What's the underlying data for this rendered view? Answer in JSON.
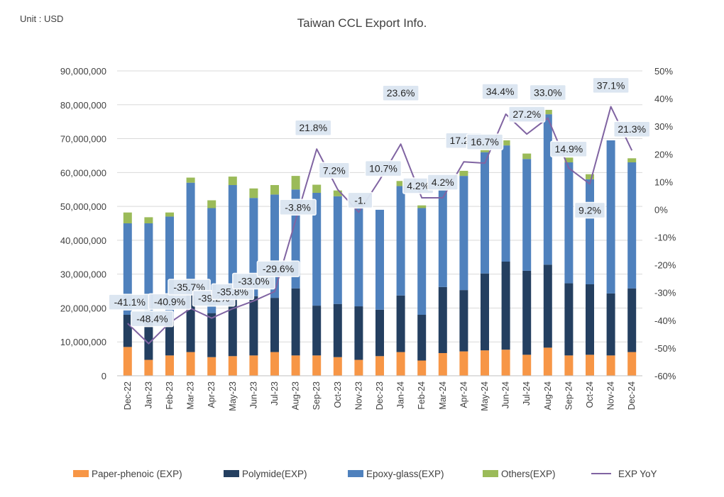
{
  "chart_data": {
    "type": "bar",
    "stacked": true,
    "title": "Taiwan CCL Export Info.",
    "unit_label": "Unit : USD",
    "categories": [
      "Dec-22",
      "Jan-23",
      "Feb-23",
      "Mar-23",
      "Apr-23",
      "May-23",
      "Jun-23",
      "Jul-23",
      "Aug-23",
      "Sep-23",
      "Oct-23",
      "Nov-23",
      "Dec-23",
      "Jan-24",
      "Feb-24",
      "Mar-24",
      "Apr-24",
      "May-24",
      "Jun-24",
      "Jul-24",
      "Aug-24",
      "Sep-24",
      "Oct-24",
      "Nov-24",
      "Dec-24"
    ],
    "series": [
      {
        "name": "Paper-phenoic (EXP)",
        "color": "#f79646",
        "values": [
          8500000,
          4700000,
          6000000,
          7000000,
          5500000,
          5800000,
          6000000,
          7000000,
          6000000,
          6000000,
          5500000,
          4700000,
          5800000,
          7000000,
          4500000,
          6700000,
          7200000,
          7500000,
          7700000,
          6200000,
          8300000,
          6000000,
          6200000,
          6000000,
          7000000
        ]
      },
      {
        "name": "Polymide(EXP)",
        "color": "#243f60",
        "values": [
          9500000,
          12300000,
          10000000,
          17000000,
          13000000,
          19700000,
          17500000,
          16000000,
          19800000,
          14700000,
          15700000,
          15800000,
          13700000,
          16700000,
          13500000,
          19500000,
          18100000,
          22700000,
          26000000,
          24800000,
          24500000,
          21300000,
          20800000,
          18300000,
          18800000
        ]
      },
      {
        "name": "Epoxy-glass(EXP)",
        "color": "#4f81bd",
        "values": [
          27000000,
          28000000,
          31000000,
          33000000,
          31000000,
          30800000,
          29000000,
          30500000,
          29200000,
          33300000,
          31800000,
          30500000,
          29500000,
          32300000,
          31500000,
          28800000,
          33700000,
          35800000,
          34300000,
          33000000,
          44400000,
          35700000,
          31000000,
          45200000,
          37200000
        ]
      },
      {
        "name": "Others(EXP)",
        "color": "#9bbb59",
        "values": [
          3200000,
          1800000,
          1200000,
          1500000,
          2300000,
          2500000,
          2800000,
          2800000,
          4000000,
          2400000,
          1700000,
          0,
          0,
          1500000,
          800000,
          800000,
          1500000,
          2000000,
          1500000,
          1600000,
          1300000,
          1400000,
          1500000,
          0,
          1200000
        ]
      }
    ],
    "line_series": {
      "name": "EXP YoY",
      "color": "#8064a2",
      "axis": "right",
      "values": [
        -41.1,
        -48.4,
        -40.9,
        -35.7,
        -39.2,
        -35.8,
        -33.0,
        -29.6,
        -3.8,
        21.8,
        7.2,
        -1.0,
        10.7,
        23.6,
        4.2,
        4.2,
        17.2,
        16.7,
        34.4,
        27.2,
        33.0,
        14.9,
        9.2,
        37.1,
        21.3
      ]
    },
    "data_labels": [
      "-41.1%",
      "-48.4%",
      "-40.9%",
      "-35.7%",
      "-39.2%",
      "-35.8%",
      "-33.0%",
      "-29.6%",
      "-3.8%",
      "21.8%",
      "7.2%",
      "-1.",
      "10.7%",
      "23.6%",
      "4.2%",
      "4.2%",
      "17.2%",
      "16.7%",
      "34.4%",
      "27.2%",
      "33.0%",
      "14.9%",
      "9.2%",
      "37.1%",
      "21.3%"
    ],
    "y_left": {
      "min": 0,
      "max": 90000000,
      "step": 10000000,
      "tick_labels": [
        "0",
        "10,000,000",
        "20,000,000",
        "30,000,000",
        "40,000,000",
        "50,000,000",
        "60,000,000",
        "70,000,000",
        "80,000,000",
        "90,000,000"
      ]
    },
    "y_right": {
      "min": -60,
      "max": 50,
      "step": 10,
      "tick_labels": [
        "-60%",
        "-50%",
        "-40%",
        "-30%",
        "-20%",
        "-10%",
        "0%",
        "10%",
        "20%",
        "30%",
        "40%",
        "50%"
      ]
    },
    "legend": [
      "Paper-phenoic (EXP)",
      "Polymide(EXP)",
      "Epoxy-glass(EXP)",
      "Others(EXP)",
      "EXP YoY"
    ],
    "legend_position": "bottom",
    "grid": true
  }
}
